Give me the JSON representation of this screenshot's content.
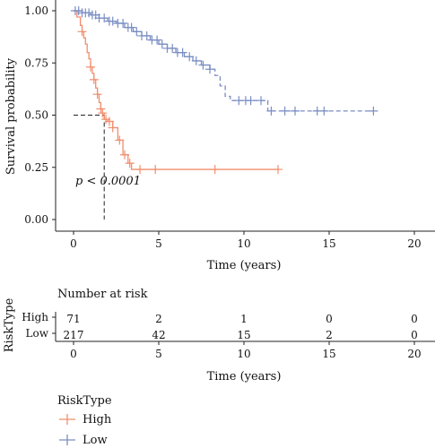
{
  "chart_data": {
    "type": "line",
    "title": "",
    "xlabel": "Time (years)",
    "ylabel": "Survival probability",
    "xlim": [
      0,
      20
    ],
    "ylim": [
      0,
      1
    ],
    "x_ticks": [
      0,
      5,
      10,
      15,
      20
    ],
    "y_ticks": [
      "0.00",
      "0.25",
      "0.50",
      "0.75",
      "1.00"
    ],
    "grid": false,
    "annotation": {
      "label": "p < 0.0001",
      "median_high_years": 1.8,
      "median_prob": 0.5
    },
    "series": [
      {
        "name": "High",
        "color": "#f08e6e",
        "line_style": "solid",
        "steps": [
          [
            0,
            1.0
          ],
          [
            0.2,
            0.97
          ],
          [
            0.4,
            0.93
          ],
          [
            0.5,
            0.9
          ],
          [
            0.6,
            0.87
          ],
          [
            0.7,
            0.84
          ],
          [
            0.8,
            0.8
          ],
          [
            0.9,
            0.77
          ],
          [
            1.0,
            0.73
          ],
          [
            1.1,
            0.7
          ],
          [
            1.2,
            0.67
          ],
          [
            1.3,
            0.63
          ],
          [
            1.4,
            0.6
          ],
          [
            1.5,
            0.56
          ],
          [
            1.6,
            0.53
          ],
          [
            1.7,
            0.51
          ],
          [
            1.8,
            0.48
          ],
          [
            2.0,
            0.47
          ],
          [
            2.3,
            0.44
          ],
          [
            2.6,
            0.38
          ],
          [
            2.9,
            0.31
          ],
          [
            3.2,
            0.27
          ],
          [
            3.4,
            0.24
          ],
          [
            12.0,
            0.24
          ]
        ],
        "censor_times": [
          0.5,
          1.0,
          1.2,
          1.4,
          1.6,
          1.7,
          1.9,
          2.1,
          2.3,
          2.7,
          3.0,
          3.3,
          3.9,
          4.8,
          8.3,
          12.0
        ]
      },
      {
        "name": "Low",
        "color": "#7b8ec4",
        "line_style": "solid-then-dashed",
        "dash_after_years": 8.0,
        "steps": [
          [
            0,
            1.0
          ],
          [
            0.5,
            0.99
          ],
          [
            1.0,
            0.98
          ],
          [
            1.5,
            0.965
          ],
          [
            2.0,
            0.95
          ],
          [
            2.5,
            0.94
          ],
          [
            3.0,
            0.92
          ],
          [
            3.5,
            0.9
          ],
          [
            4.0,
            0.88
          ],
          [
            4.5,
            0.86
          ],
          [
            5.0,
            0.84
          ],
          [
            5.5,
            0.82
          ],
          [
            6.0,
            0.8
          ],
          [
            6.5,
            0.78
          ],
          [
            7.0,
            0.76
          ],
          [
            7.5,
            0.74
          ],
          [
            8.0,
            0.72
          ],
          [
            8.3,
            0.69
          ],
          [
            8.6,
            0.64
          ],
          [
            8.9,
            0.59
          ],
          [
            9.2,
            0.57
          ],
          [
            11.4,
            0.52
          ],
          [
            17.6,
            0.52
          ]
        ],
        "censor_times": [
          0.1,
          0.3,
          0.5,
          0.7,
          0.9,
          1.1,
          1.3,
          1.5,
          1.8,
          2.1,
          2.3,
          2.6,
          2.9,
          3.2,
          3.4,
          3.7,
          4.0,
          4.3,
          4.6,
          4.9,
          5.2,
          5.5,
          5.8,
          6.1,
          6.4,
          6.8,
          7.2,
          7.6,
          8.0,
          9.7,
          10.1,
          10.4,
          11.0,
          11.6,
          12.4,
          13.0,
          14.3,
          14.7,
          17.6
        ]
      }
    ]
  },
  "risk_table": {
    "title": "Number at risk",
    "y_axis_label": "RiskType",
    "x_label": "Time (years)",
    "x_ticks": [
      0,
      5,
      10,
      15,
      20
    ],
    "rows": [
      {
        "name": "High",
        "color": "#f08e6e",
        "values": [
          "71",
          "2",
          "1",
          "0",
          "0"
        ]
      },
      {
        "name": "Low",
        "color": "#7b8ec4",
        "values": [
          "217",
          "42",
          "15",
          "2",
          "0"
        ]
      }
    ]
  },
  "legend": {
    "title": "RiskType",
    "items": [
      {
        "label": "High",
        "color": "#f08e6e"
      },
      {
        "label": "Low",
        "color": "#7b8ec4"
      }
    ]
  }
}
